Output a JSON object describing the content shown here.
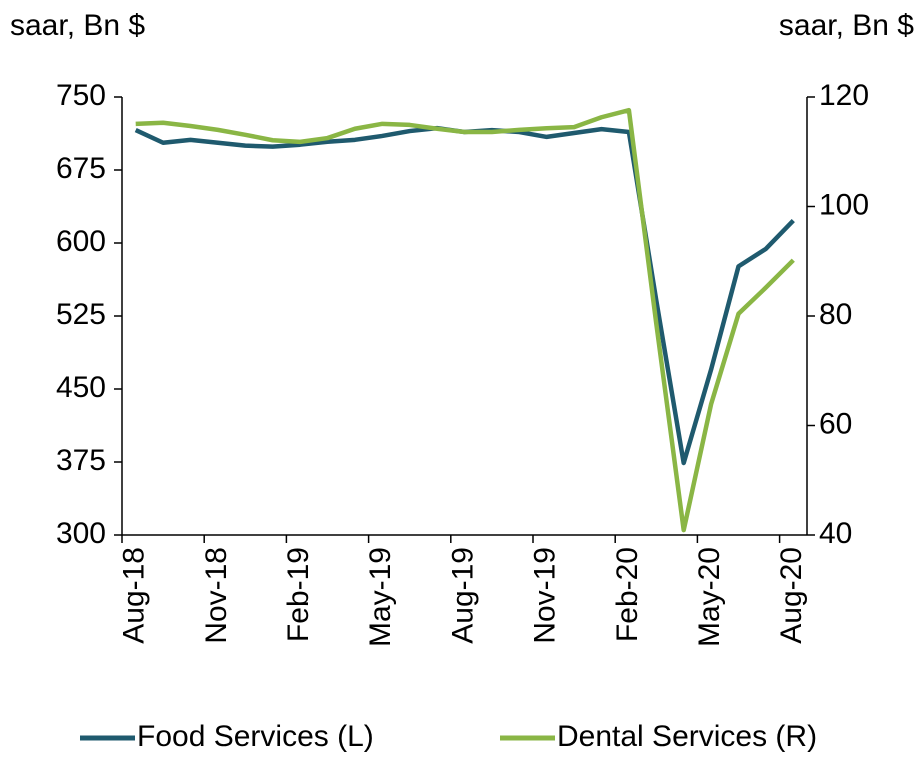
{
  "chart_data": {
    "type": "line",
    "y_label": "saar, Bn $",
    "y2_label": "saar, Bn $",
    "categories": [
      "Aug-18",
      null,
      null,
      "Nov-18",
      null,
      null,
      "Feb-19",
      null,
      null,
      "May-19",
      null,
      null,
      "Aug-19",
      null,
      null,
      "Nov-19",
      null,
      null,
      "Feb-20",
      null,
      null,
      "May-20",
      null,
      null,
      "Aug-20"
    ],
    "series": [
      {
        "name": "Food Services (L)",
        "color": "#1f5a6e",
        "axis": "y",
        "values": [
          716,
          703,
          706,
          703,
          700,
          699,
          701,
          704,
          706,
          710,
          715,
          718,
          714,
          716,
          714,
          709,
          713,
          717,
          714,
          541,
          374,
          470,
          576,
          594,
          623
        ]
      },
      {
        "name": "Dental Services (R)",
        "color": "#8ab645",
        "axis": "y2",
        "values": [
          115.1,
          115.3,
          114.7,
          114,
          113.1,
          112.1,
          111.8,
          112.5,
          114.2,
          115.1,
          114.9,
          114.2,
          113.6,
          113.6,
          114,
          114.3,
          114.5,
          116.3,
          117.6,
          78.6,
          40.9,
          63.9,
          80.4,
          85.2,
          90.2
        ]
      }
    ],
    "ylim": [
      300,
      750
    ],
    "yticks": [
      300,
      375,
      450,
      525,
      600,
      675,
      750
    ],
    "y2lim": [
      40,
      120
    ],
    "y2ticks": [
      40,
      60,
      80,
      100,
      120
    ],
    "legend": "bottom"
  }
}
